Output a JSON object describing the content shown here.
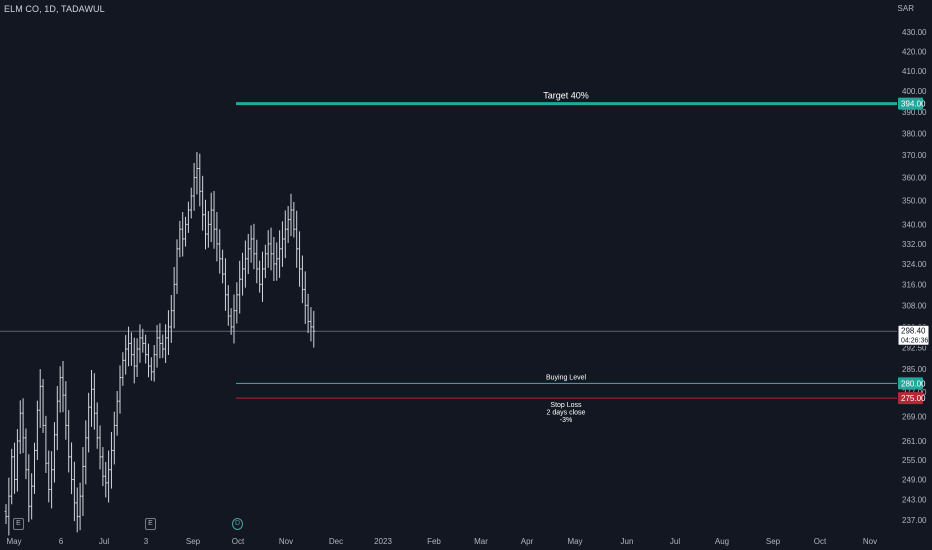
{
  "header": {
    "symbol_line": "ELM CO, 1D, TADAWUL",
    "currency": "SAR"
  },
  "colors": {
    "background": "#131722",
    "bars": "#d1d4dc",
    "target_line": "#26a69a",
    "buying_line": "#26a69a",
    "stop_line": "#b22833",
    "axis_text": "#b2b5be",
    "price_line": "#5d606b"
  },
  "event_markers": [
    {
      "label": "E",
      "type": "earnings"
    },
    {
      "label": "E",
      "type": "earnings"
    },
    {
      "label": "D",
      "type": "dividend"
    }
  ],
  "chart_data": {
    "type": "ohlc",
    "x_tick_labels": [
      "May",
      "6",
      "Jul",
      "3",
      "Sep",
      "Oct",
      "Nov",
      "Dec",
      "2023",
      "Feb",
      "Mar",
      "Apr",
      "May",
      "Jun",
      "Jul",
      "Aug",
      "Sep",
      "Oct",
      "Nov"
    ],
    "y_tick_labels": [
      "237.00",
      "243.00",
      "249.00",
      "255.00",
      "261.00",
      "269.00",
      "277.00",
      "285.00",
      "292.50",
      "300.00",
      "308.00",
      "316.00",
      "324.00",
      "332.00",
      "340.00",
      "350.00",
      "360.00",
      "370.00",
      "380.00",
      "390.00",
      "400.00",
      "410.00",
      "420.00",
      "430.00"
    ],
    "y_scale": "logarithmic",
    "ylim": [
      233,
      438
    ],
    "grid": false,
    "last_price": {
      "value": 298.4,
      "label": "298.40",
      "countdown": "04:26:36"
    },
    "levels": [
      {
        "name": "Target 40%",
        "price": 394.0,
        "price_label": "394.00",
        "color": "#26a69a"
      },
      {
        "name": "Buying Level",
        "price": 280.0,
        "price_label": "280.00",
        "color": "#26a69a"
      },
      {
        "name": "Stop Loss\n2 days close\n-3%",
        "price_label": "275.00",
        "price": 275.0,
        "color": "#b22833"
      }
    ],
    "annotations": {
      "target": "Target 40%",
      "buying": "Buying Level",
      "stop_lines": [
        "Stop Loss",
        "2 days close",
        "-3%"
      ]
    },
    "closes": [
      238,
      244,
      256,
      249,
      261,
      270,
      262,
      252,
      241,
      247,
      258,
      271,
      279,
      266,
      254,
      246,
      252,
      263,
      274,
      282,
      276,
      266,
      256,
      249,
      242,
      238,
      244,
      253,
      262,
      272,
      278,
      270,
      262,
      256,
      250,
      248,
      252,
      258,
      266,
      274,
      282,
      288,
      292,
      294,
      290,
      286,
      292,
      296,
      294,
      290,
      286,
      284,
      290,
      296,
      294,
      292,
      296,
      300,
      306,
      316,
      330,
      338,
      334,
      340,
      346,
      352,
      360,
      364,
      354,
      344,
      336,
      340,
      346,
      338,
      332,
      326,
      320,
      312,
      304,
      300,
      306,
      312,
      318,
      322,
      326,
      330,
      334,
      328,
      322,
      316,
      322,
      328,
      332,
      328,
      324,
      326,
      330,
      334,
      338,
      342,
      346,
      338,
      330,
      322,
      314,
      308,
      302,
      300,
      298.4
    ]
  }
}
